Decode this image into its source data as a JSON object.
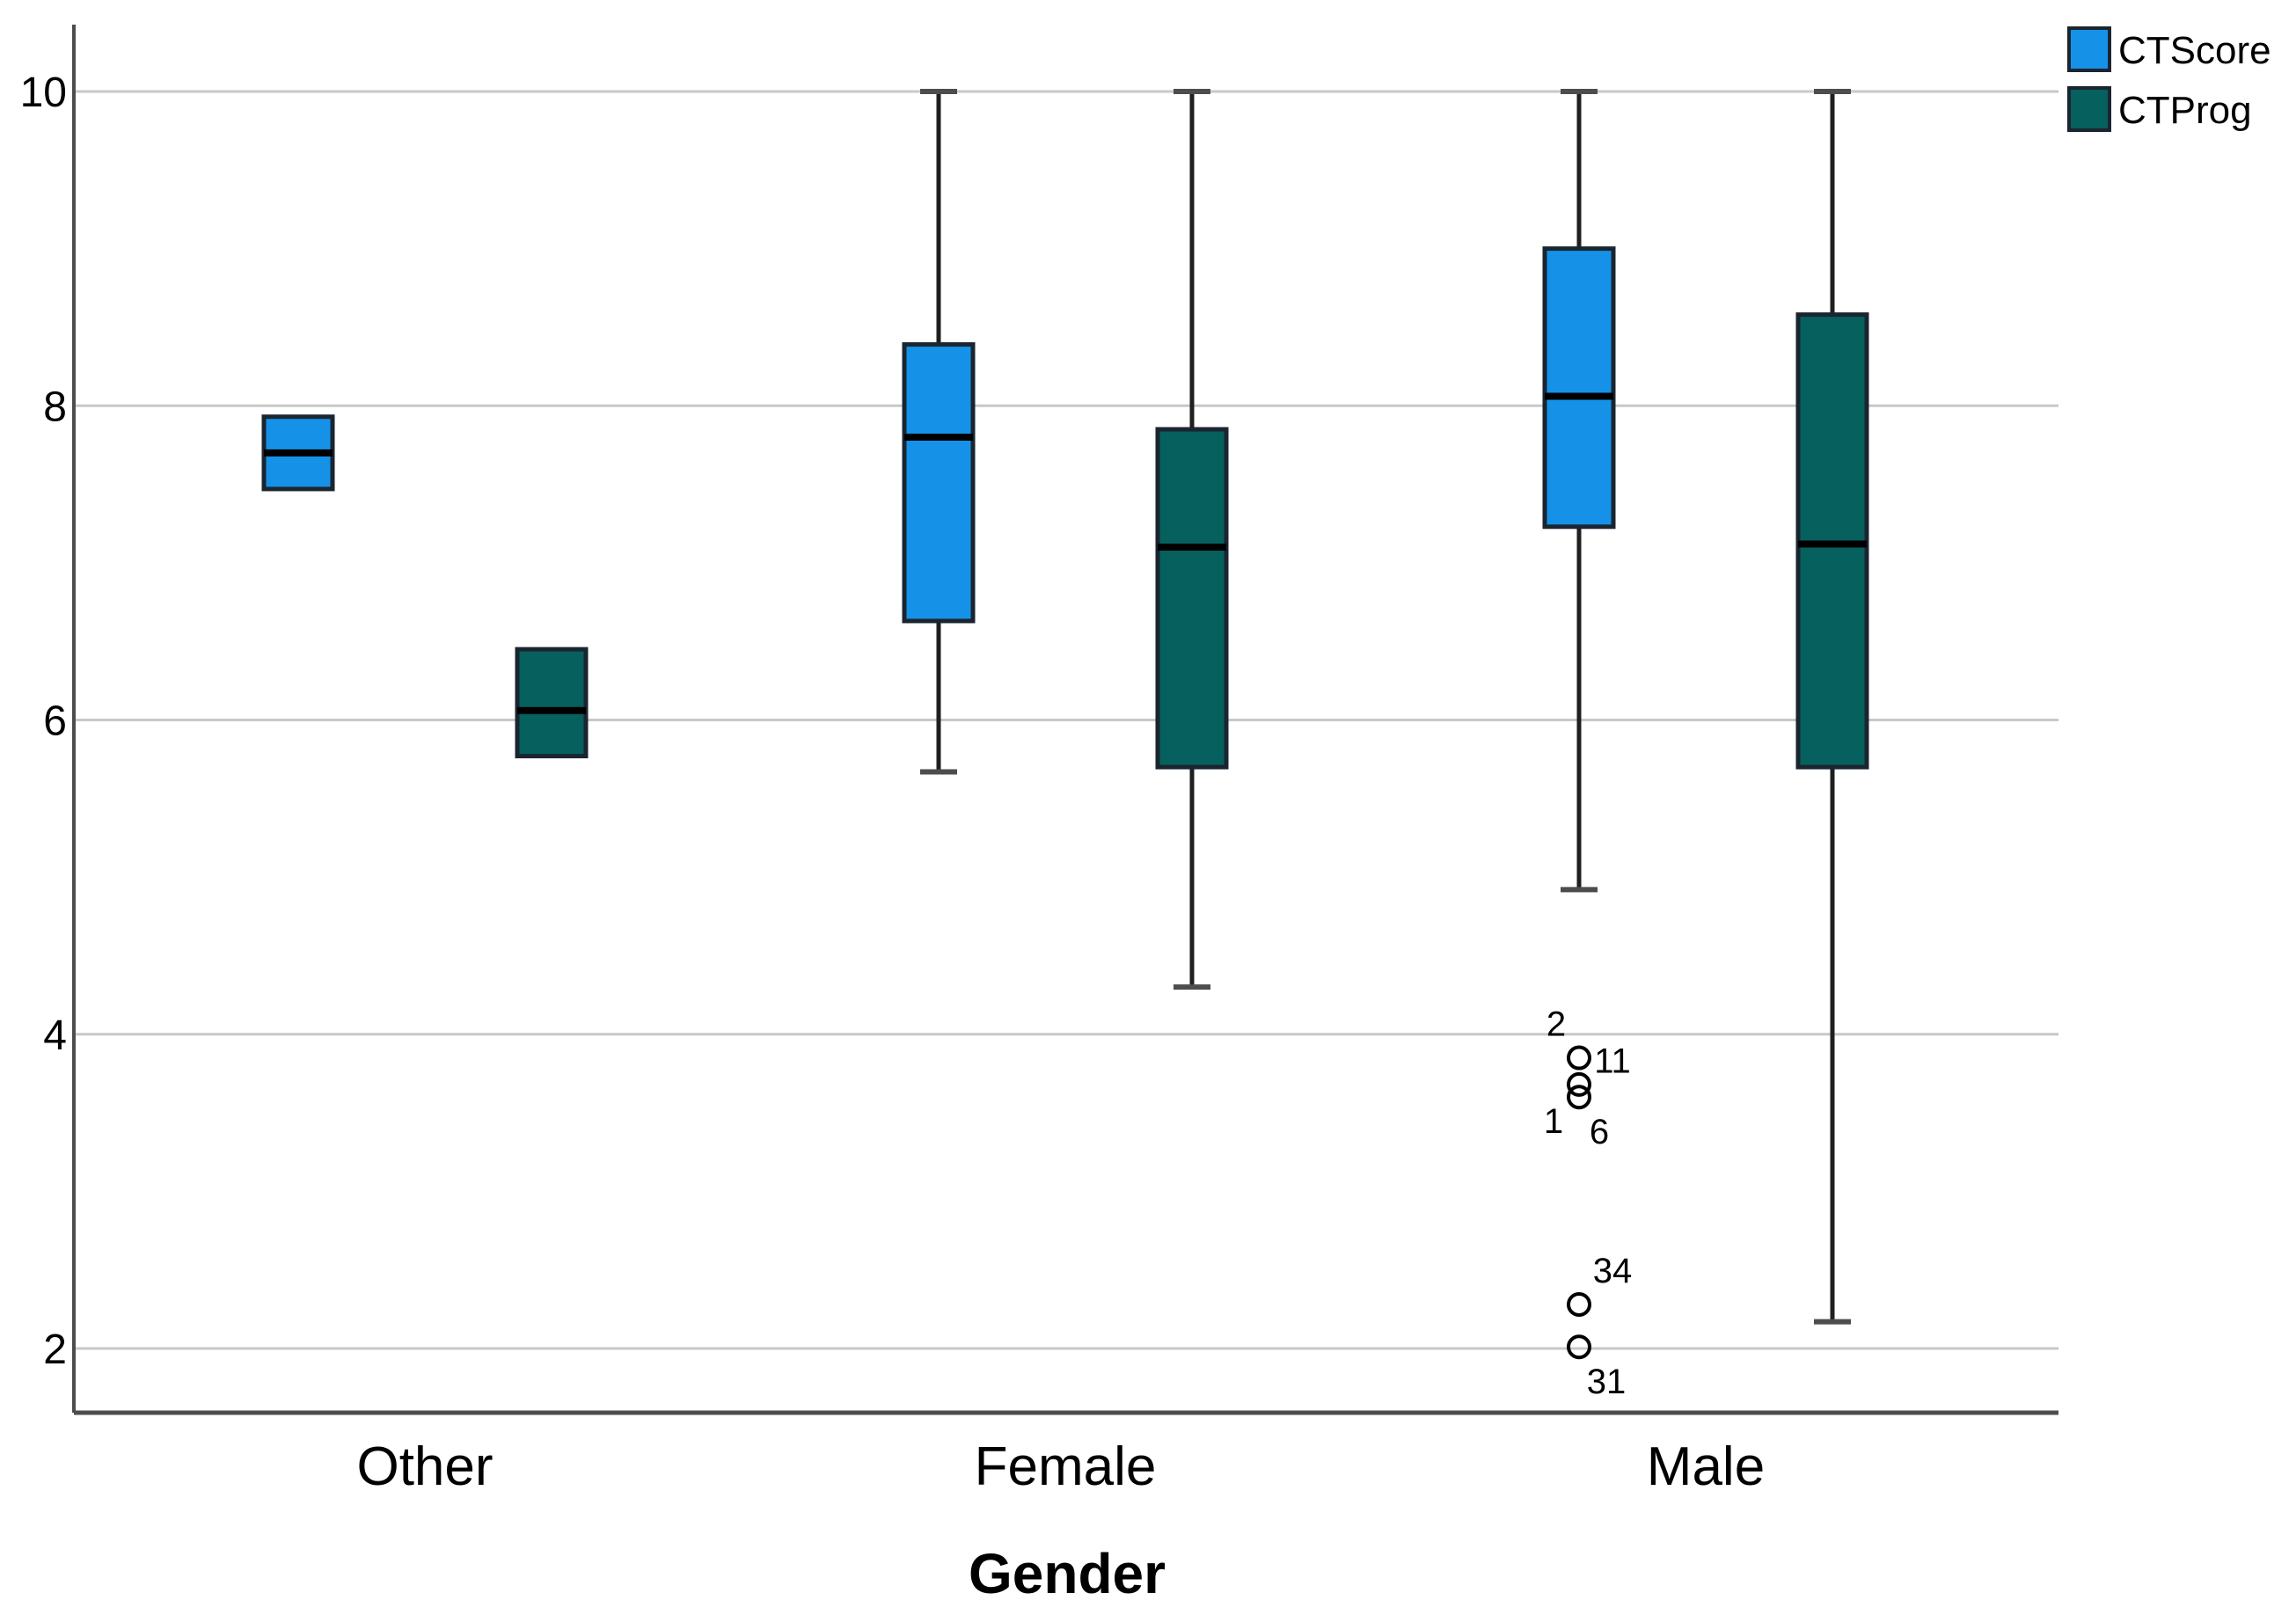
{
  "chart_data": {
    "type": "boxplot",
    "title": "",
    "xlabel": "Gender",
    "ylabel": "",
    "categories": [
      "Other",
      "Female",
      "Male"
    ],
    "y_ticks": [
      "2",
      "4",
      "6",
      "8",
      "10"
    ],
    "ylim": [
      1.6,
      10.45
    ],
    "grid": true,
    "legend_position": "top-right",
    "colors": {
      "ctscore": "#1592E8",
      "ctprog": "#06605E",
      "box_border": "#1A2530",
      "median": "#000000",
      "whisker": "#1f1f1f",
      "whisker_cap": "#4d4d4d",
      "gridline": "#C8C8C8",
      "axis": "#4D4D4D",
      "outlier_stroke": "#000000"
    },
    "legend": {
      "items": [
        {
          "label": "CTScore",
          "color_key": "ctscore"
        },
        {
          "label": "CTProg",
          "color_key": "ctprog"
        }
      ]
    },
    "series": [
      {
        "name": "CTScore",
        "color_key": "ctscore",
        "boxes": [
          {
            "category": "Other",
            "q1": 7.47,
            "median": 7.7,
            "q3": 7.93,
            "whisker_low": null,
            "whisker_high": null,
            "outliers": []
          },
          {
            "category": "Female",
            "q1": 6.63,
            "median": 7.8,
            "q3": 8.39,
            "whisker_low": 5.67,
            "whisker_high": 10.0,
            "outliers": []
          },
          {
            "category": "Male",
            "q1": 7.23,
            "median": 8.06,
            "q3": 9.0,
            "whisker_low": 4.92,
            "whisker_high": 10.0,
            "outliers": [
              {
                "value": 3.85,
                "labels": [
                  {
                    "text": "2",
                    "dx": -26,
                    "dy": -39
                  },
                  {
                    "text": "11",
                    "dx": 38,
                    "dy": 3
                  }
                ]
              },
              {
                "value": 3.68,
                "labels": []
              },
              {
                "value": 3.6,
                "labels": [
                  {
                    "text": "1",
                    "dx": -29,
                    "dy": 27
                  },
                  {
                    "text": "6",
                    "dx": 23,
                    "dy": 39
                  }
                ]
              },
              {
                "value": 2.28,
                "labels": [
                  {
                    "text": "34",
                    "dx": 38,
                    "dy": -39
                  }
                ]
              },
              {
                "value": 2.01,
                "labels": [
                  {
                    "text": "31",
                    "dx": 31,
                    "dy": 39
                  }
                ]
              }
            ]
          }
        ]
      },
      {
        "name": "CTProg",
        "color_key": "ctprog",
        "boxes": [
          {
            "category": "Other",
            "q1": 5.77,
            "median": 6.06,
            "q3": 6.45,
            "whisker_low": null,
            "whisker_high": null,
            "outliers": []
          },
          {
            "category": "Female",
            "q1": 5.7,
            "median": 7.1,
            "q3": 7.85,
            "whisker_low": 4.3,
            "whisker_high": 10.0,
            "outliers": []
          },
          {
            "category": "Male",
            "q1": 5.7,
            "median": 7.12,
            "q3": 8.58,
            "whisker_low": 2.17,
            "whisker_high": 10.0,
            "outliers": []
          }
        ]
      }
    ]
  }
}
